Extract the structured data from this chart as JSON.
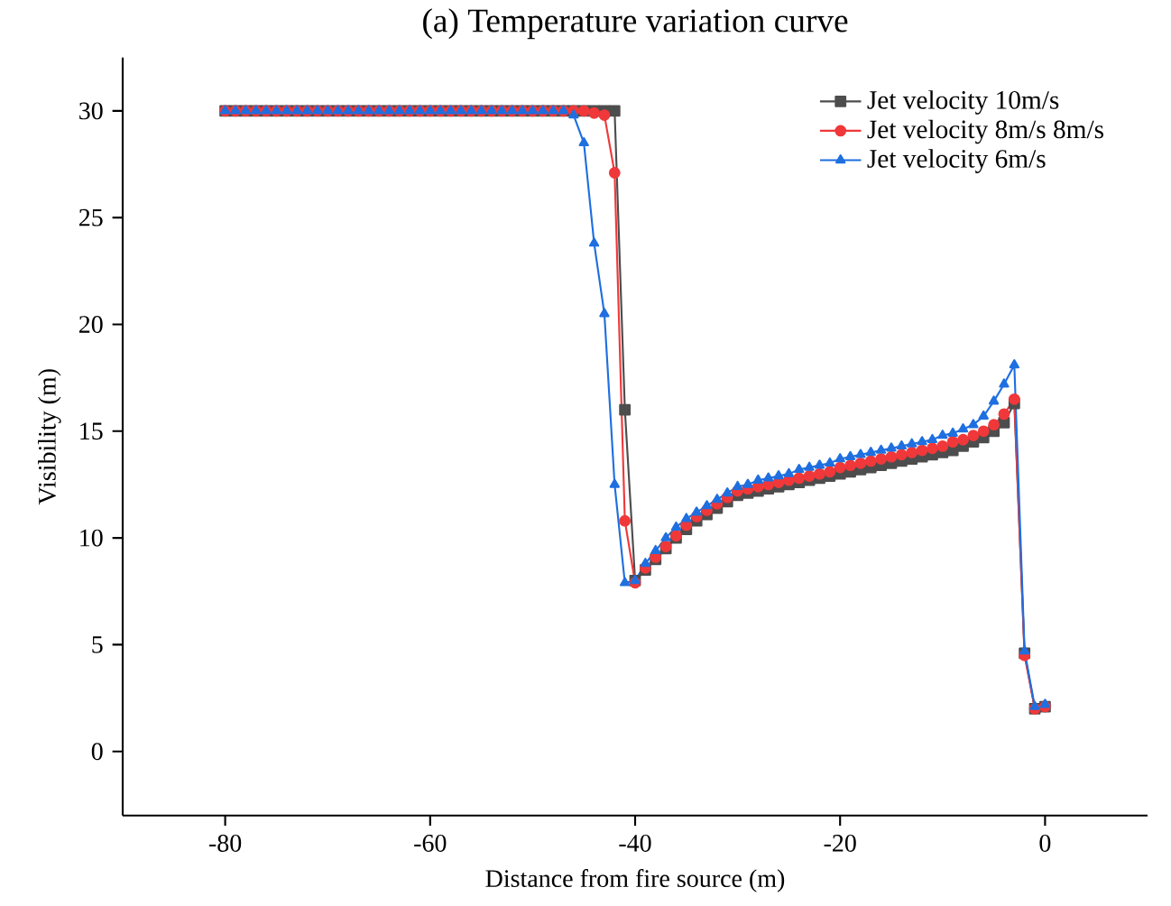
{
  "chart_data": {
    "type": "line",
    "title": "(a) Temperature variation curve",
    "xlabel": "Distance from fire source (m)",
    "ylabel": "Visibility (m)",
    "xlim": [
      -90,
      10
    ],
    "ylim": [
      -3,
      32.5
    ],
    "xticks": [
      -80,
      -60,
      -40,
      -20,
      0
    ],
    "yticks": [
      0,
      5,
      10,
      15,
      20,
      25,
      30
    ],
    "grid": false,
    "legend": "top right",
    "x": [
      -80,
      -79,
      -78,
      -77,
      -76,
      -75,
      -74,
      -73,
      -72,
      -71,
      -70,
      -69,
      -68,
      -67,
      -66,
      -65,
      -64,
      -63,
      -62,
      -61,
      -60,
      -59,
      -58,
      -57,
      -56,
      -55,
      -54,
      -53,
      -52,
      -51,
      -50,
      -49,
      -48,
      -47,
      -46,
      -45,
      -44,
      -43,
      -42,
      -41,
      -40,
      -39,
      -38,
      -37,
      -36,
      -35,
      -34,
      -33,
      -32,
      -31,
      -30,
      -29,
      -28,
      -27,
      -26,
      -25,
      -24,
      -23,
      -22,
      -21,
      -20,
      -19,
      -18,
      -17,
      -16,
      -15,
      -14,
      -13,
      -12,
      -11,
      -10,
      -9,
      -8,
      -7,
      -6,
      -5,
      -4,
      -3,
      -2,
      -1,
      0
    ],
    "series": [
      {
        "name": "Jet velocity 10m/s",
        "color": "#4d4d4d",
        "marker": "square",
        "values": [
          30,
          30,
          30,
          30,
          30,
          30,
          30,
          30,
          30,
          30,
          30,
          30,
          30,
          30,
          30,
          30,
          30,
          30,
          30,
          30,
          30,
          30,
          30,
          30,
          30,
          30,
          30,
          30,
          30,
          30,
          30,
          30,
          30,
          30,
          30,
          30,
          30,
          30,
          30,
          16.0,
          8.0,
          8.5,
          9.0,
          9.5,
          10.0,
          10.4,
          10.8,
          11.1,
          11.4,
          11.7,
          12.0,
          12.1,
          12.2,
          12.3,
          12.4,
          12.5,
          12.6,
          12.7,
          12.8,
          12.9,
          13.0,
          13.1,
          13.2,
          13.3,
          13.4,
          13.5,
          13.6,
          13.7,
          13.8,
          13.9,
          14.0,
          14.1,
          14.3,
          14.5,
          14.7,
          15.0,
          15.4,
          16.3,
          4.6,
          2.0,
          2.1
        ]
      },
      {
        "name": "Jet velocity 8m/s 8m/s",
        "color": "#f0383a",
        "marker": "circle",
        "values": [
          30,
          30,
          30,
          30,
          30,
          30,
          30,
          30,
          30,
          30,
          30,
          30,
          30,
          30,
          30,
          30,
          30,
          30,
          30,
          30,
          30,
          30,
          30,
          30,
          30,
          30,
          30,
          30,
          30,
          30,
          30,
          30,
          30,
          30,
          30,
          30,
          29.9,
          29.8,
          27.1,
          10.8,
          7.9,
          8.6,
          9.1,
          9.6,
          10.1,
          10.6,
          11.0,
          11.3,
          11.6,
          11.9,
          12.2,
          12.3,
          12.4,
          12.5,
          12.6,
          12.7,
          12.8,
          12.9,
          13.0,
          13.1,
          13.3,
          13.4,
          13.5,
          13.6,
          13.7,
          13.8,
          13.9,
          14.0,
          14.1,
          14.2,
          14.3,
          14.5,
          14.6,
          14.8,
          15.0,
          15.3,
          15.8,
          16.5,
          4.5,
          2.0,
          2.1
        ]
      },
      {
        "name": "Jet velocity 6m/s",
        "color": "#1f6fe0",
        "marker": "triangle",
        "values": [
          30,
          30,
          30,
          30,
          30,
          30,
          30,
          30,
          30,
          30,
          30,
          30,
          30,
          30,
          30,
          30,
          30,
          30,
          30,
          30,
          30,
          30,
          30,
          30,
          30,
          30,
          30,
          30,
          30,
          30,
          30,
          30,
          30,
          30,
          29.8,
          28.5,
          23.8,
          20.5,
          12.5,
          7.9,
          8.0,
          8.8,
          9.4,
          10.0,
          10.5,
          10.9,
          11.2,
          11.5,
          11.8,
          12.1,
          12.4,
          12.5,
          12.7,
          12.8,
          12.9,
          13.0,
          13.2,
          13.3,
          13.4,
          13.5,
          13.7,
          13.8,
          13.9,
          14.0,
          14.1,
          14.2,
          14.3,
          14.4,
          14.5,
          14.6,
          14.8,
          14.9,
          15.1,
          15.3,
          15.7,
          16.4,
          17.2,
          18.1,
          4.7,
          2.1,
          2.2
        ]
      }
    ]
  }
}
